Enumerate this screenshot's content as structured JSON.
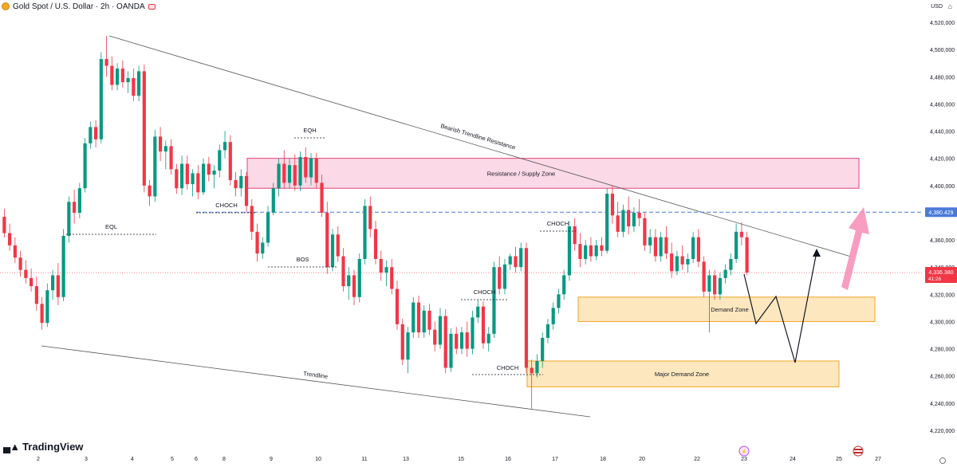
{
  "header": {
    "symbol_title": "Gold Spot / U.S. Dollar · 2h · OANDA"
  },
  "currency": "USD",
  "branding": "TradingView",
  "colors": {
    "up": "#089981",
    "down": "#f23645",
    "supply_zone_fill": "#fbd9e6",
    "supply_zone_border": "#e0427b",
    "demand_zone_fill": "#fde7bf",
    "demand_zone_border": "#f0a524",
    "price_line": "#4a7ad8",
    "projection_arrow": "#f792b8"
  },
  "chart_data": {
    "type": "candlestick",
    "symbol": "XAUUSD",
    "timeframe": "2h",
    "y_axis": {
      "min": 4220,
      "max": 4520,
      "ticks": [
        "4,520,000",
        "4,500,000",
        "4,480,000",
        "4,460,000",
        "4,440,000",
        "4,420,000",
        "4,400,000",
        "4,380,000",
        "4,360,000",
        "4,340,000",
        "4,320,000",
        "4,300,000",
        "4,280,000",
        "4,260,000",
        "4,240,000",
        "4,220,000"
      ]
    },
    "x_axis": {
      "ticks": [
        "2",
        "3",
        "4",
        "5",
        "6",
        "8",
        "9",
        "10",
        "11",
        "13",
        "15",
        "16",
        "17",
        "18",
        "20",
        "22",
        "23",
        "24",
        "25",
        "27"
      ]
    },
    "candles": [
      {
        "o": 4377,
        "h": 4383,
        "l": 4362,
        "c": 4365
      },
      {
        "o": 4365,
        "h": 4372,
        "l": 4352,
        "c": 4356
      },
      {
        "o": 4356,
        "h": 4362,
        "l": 4343,
        "c": 4347
      },
      {
        "o": 4347,
        "h": 4352,
        "l": 4333,
        "c": 4338
      },
      {
        "o": 4338,
        "h": 4345,
        "l": 4328,
        "c": 4332
      },
      {
        "o": 4332,
        "h": 4339,
        "l": 4322,
        "c": 4326
      },
      {
        "o": 4326,
        "h": 4333,
        "l": 4308,
        "c": 4313
      },
      {
        "o": 4313,
        "h": 4318,
        "l": 4294,
        "c": 4299
      },
      {
        "o": 4299,
        "h": 4328,
        "l": 4296,
        "c": 4323
      },
      {
        "o": 4323,
        "h": 4338,
        "l": 4316,
        "c": 4334
      },
      {
        "o": 4334,
        "h": 4343,
        "l": 4312,
        "c": 4318
      },
      {
        "o": 4318,
        "h": 4368,
        "l": 4315,
        "c": 4363
      },
      {
        "o": 4363,
        "h": 4392,
        "l": 4358,
        "c": 4388
      },
      {
        "o": 4388,
        "h": 4397,
        "l": 4372,
        "c": 4380
      },
      {
        "o": 4380,
        "h": 4402,
        "l": 4376,
        "c": 4398
      },
      {
        "o": 4398,
        "h": 4435,
        "l": 4395,
        "c": 4431
      },
      {
        "o": 4431,
        "h": 4447,
        "l": 4427,
        "c": 4443
      },
      {
        "o": 4443,
        "h": 4448,
        "l": 4428,
        "c": 4434
      },
      {
        "o": 4434,
        "h": 4498,
        "l": 4431,
        "c": 4493
      },
      {
        "o": 4493,
        "h": 4510,
        "l": 4480,
        "c": 4488
      },
      {
        "o": 4488,
        "h": 4495,
        "l": 4470,
        "c": 4474
      },
      {
        "o": 4474,
        "h": 4490,
        "l": 4470,
        "c": 4486
      },
      {
        "o": 4486,
        "h": 4492,
        "l": 4472,
        "c": 4476
      },
      {
        "o": 4476,
        "h": 4484,
        "l": 4468,
        "c": 4479
      },
      {
        "o": 4479,
        "h": 4486,
        "l": 4462,
        "c": 4466
      },
      {
        "o": 4466,
        "h": 4488,
        "l": 4462,
        "c": 4484
      },
      {
        "o": 4484,
        "h": 4489,
        "l": 4395,
        "c": 4400
      },
      {
        "o": 4400,
        "h": 4404,
        "l": 4385,
        "c": 4392
      },
      {
        "o": 4392,
        "h": 4441,
        "l": 4388,
        "c": 4436
      },
      {
        "o": 4436,
        "h": 4443,
        "l": 4418,
        "c": 4425
      },
      {
        "o": 4425,
        "h": 4433,
        "l": 4412,
        "c": 4429
      },
      {
        "o": 4429,
        "h": 4434,
        "l": 4408,
        "c": 4412
      },
      {
        "o": 4412,
        "h": 4416,
        "l": 4394,
        "c": 4398
      },
      {
        "o": 4398,
        "h": 4422,
        "l": 4393,
        "c": 4416
      },
      {
        "o": 4416,
        "h": 4422,
        "l": 4397,
        "c": 4401
      },
      {
        "o": 4401,
        "h": 4412,
        "l": 4392,
        "c": 4409
      },
      {
        "o": 4409,
        "h": 4415,
        "l": 4390,
        "c": 4395
      },
      {
        "o": 4395,
        "h": 4420,
        "l": 4393,
        "c": 4416
      },
      {
        "o": 4416,
        "h": 4421,
        "l": 4403,
        "c": 4408
      },
      {
        "o": 4408,
        "h": 4415,
        "l": 4398,
        "c": 4411
      },
      {
        "o": 4411,
        "h": 4430,
        "l": 4406,
        "c": 4426
      },
      {
        "o": 4426,
        "h": 4440,
        "l": 4420,
        "c": 4432
      },
      {
        "o": 4432,
        "h": 4437,
        "l": 4400,
        "c": 4404
      },
      {
        "o": 4404,
        "h": 4410,
        "l": 4392,
        "c": 4398
      },
      {
        "o": 4398,
        "h": 4412,
        "l": 4392,
        "c": 4407
      },
      {
        "o": 4407,
        "h": 4410,
        "l": 4380,
        "c": 4385
      },
      {
        "o": 4385,
        "h": 4390,
        "l": 4360,
        "c": 4366
      },
      {
        "o": 4366,
        "h": 4372,
        "l": 4344,
        "c": 4350
      },
      {
        "o": 4350,
        "h": 4362,
        "l": 4346,
        "c": 4358
      },
      {
        "o": 4358,
        "h": 4385,
        "l": 4355,
        "c": 4380
      },
      {
        "o": 4380,
        "h": 4402,
        "l": 4378,
        "c": 4398
      },
      {
        "o": 4398,
        "h": 4420,
        "l": 4392,
        "c": 4416
      },
      {
        "o": 4416,
        "h": 4426,
        "l": 4398,
        "c": 4402
      },
      {
        "o": 4402,
        "h": 4420,
        "l": 4398,
        "c": 4415
      },
      {
        "o": 4415,
        "h": 4423,
        "l": 4396,
        "c": 4400
      },
      {
        "o": 4400,
        "h": 4425,
        "l": 4396,
        "c": 4421
      },
      {
        "o": 4421,
        "h": 4428,
        "l": 4402,
        "c": 4406
      },
      {
        "o": 4406,
        "h": 4424,
        "l": 4400,
        "c": 4420
      },
      {
        "o": 4420,
        "h": 4424,
        "l": 4398,
        "c": 4402
      },
      {
        "o": 4402,
        "h": 4408,
        "l": 4377,
        "c": 4380
      },
      {
        "o": 4380,
        "h": 4388,
        "l": 4335,
        "c": 4340
      },
      {
        "o": 4340,
        "h": 4368,
        "l": 4337,
        "c": 4364
      },
      {
        "o": 4364,
        "h": 4370,
        "l": 4344,
        "c": 4348
      },
      {
        "o": 4348,
        "h": 4354,
        "l": 4322,
        "c": 4326
      },
      {
        "o": 4326,
        "h": 4340,
        "l": 4316,
        "c": 4334
      },
      {
        "o": 4334,
        "h": 4338,
        "l": 4312,
        "c": 4318
      },
      {
        "o": 4318,
        "h": 4350,
        "l": 4314,
        "c": 4346
      },
      {
        "o": 4346,
        "h": 4390,
        "l": 4342,
        "c": 4385
      },
      {
        "o": 4385,
        "h": 4392,
        "l": 4362,
        "c": 4368
      },
      {
        "o": 4368,
        "h": 4374,
        "l": 4342,
        "c": 4346
      },
      {
        "o": 4346,
        "h": 4352,
        "l": 4330,
        "c": 4336
      },
      {
        "o": 4336,
        "h": 4345,
        "l": 4326,
        "c": 4340
      },
      {
        "o": 4340,
        "h": 4346,
        "l": 4320,
        "c": 4324
      },
      {
        "o": 4324,
        "h": 4330,
        "l": 4294,
        "c": 4298
      },
      {
        "o": 4298,
        "h": 4302,
        "l": 4268,
        "c": 4272
      },
      {
        "o": 4272,
        "h": 4296,
        "l": 4262,
        "c": 4292
      },
      {
        "o": 4292,
        "h": 4318,
        "l": 4288,
        "c": 4314
      },
      {
        "o": 4314,
        "h": 4319,
        "l": 4288,
        "c": 4292
      },
      {
        "o": 4292,
        "h": 4312,
        "l": 4288,
        "c": 4308
      },
      {
        "o": 4308,
        "h": 4313,
        "l": 4290,
        "c": 4294
      },
      {
        "o": 4294,
        "h": 4300,
        "l": 4278,
        "c": 4283
      },
      {
        "o": 4283,
        "h": 4310,
        "l": 4280,
        "c": 4304
      },
      {
        "o": 4304,
        "h": 4309,
        "l": 4262,
        "c": 4266
      },
      {
        "o": 4266,
        "h": 4295,
        "l": 4263,
        "c": 4291
      },
      {
        "o": 4291,
        "h": 4296,
        "l": 4276,
        "c": 4280
      },
      {
        "o": 4280,
        "h": 4296,
        "l": 4276,
        "c": 4292
      },
      {
        "o": 4292,
        "h": 4300,
        "l": 4274,
        "c": 4280
      },
      {
        "o": 4280,
        "h": 4308,
        "l": 4276,
        "c": 4303
      },
      {
        "o": 4303,
        "h": 4316,
        "l": 4299,
        "c": 4311
      },
      {
        "o": 4311,
        "h": 4315,
        "l": 4280,
        "c": 4284
      },
      {
        "o": 4284,
        "h": 4296,
        "l": 4278,
        "c": 4291
      },
      {
        "o": 4291,
        "h": 4344,
        "l": 4288,
        "c": 4340
      },
      {
        "o": 4340,
        "h": 4348,
        "l": 4320,
        "c": 4324
      },
      {
        "o": 4324,
        "h": 4346,
        "l": 4320,
        "c": 4342
      },
      {
        "o": 4342,
        "h": 4350,
        "l": 4338,
        "c": 4348
      },
      {
        "o": 4348,
        "h": 4355,
        "l": 4336,
        "c": 4340
      },
      {
        "o": 4340,
        "h": 4358,
        "l": 4337,
        "c": 4354
      },
      {
        "o": 4354,
        "h": 4358,
        "l": 4262,
        "c": 4266
      },
      {
        "o": 4266,
        "h": 4272,
        "l": 4236,
        "c": 4262
      },
      {
        "o": 4262,
        "h": 4276,
        "l": 4259,
        "c": 4271
      },
      {
        "o": 4271,
        "h": 4292,
        "l": 4266,
        "c": 4288
      },
      {
        "o": 4288,
        "h": 4302,
        "l": 4284,
        "c": 4298
      },
      {
        "o": 4298,
        "h": 4314,
        "l": 4294,
        "c": 4310
      },
      {
        "o": 4310,
        "h": 4324,
        "l": 4306,
        "c": 4320
      },
      {
        "o": 4320,
        "h": 4338,
        "l": 4316,
        "c": 4334
      },
      {
        "o": 4334,
        "h": 4374,
        "l": 4330,
        "c": 4370
      },
      {
        "o": 4370,
        "h": 4376,
        "l": 4352,
        "c": 4357
      },
      {
        "o": 4357,
        "h": 4365,
        "l": 4340,
        "c": 4346
      },
      {
        "o": 4346,
        "h": 4360,
        "l": 4342,
        "c": 4356
      },
      {
        "o": 4356,
        "h": 4362,
        "l": 4344,
        "c": 4348
      },
      {
        "o": 4348,
        "h": 4360,
        "l": 4345,
        "c": 4356
      },
      {
        "o": 4356,
        "h": 4362,
        "l": 4348,
        "c": 4352
      },
      {
        "o": 4352,
        "h": 4398,
        "l": 4350,
        "c": 4394
      },
      {
        "o": 4394,
        "h": 4400,
        "l": 4372,
        "c": 4378
      },
      {
        "o": 4378,
        "h": 4388,
        "l": 4362,
        "c": 4366
      },
      {
        "o": 4366,
        "h": 4386,
        "l": 4362,
        "c": 4382
      },
      {
        "o": 4382,
        "h": 4392,
        "l": 4364,
        "c": 4370
      },
      {
        "o": 4370,
        "h": 4384,
        "l": 4366,
        "c": 4380
      },
      {
        "o": 4380,
        "h": 4390,
        "l": 4370,
        "c": 4376
      },
      {
        "o": 4376,
        "h": 4380,
        "l": 4352,
        "c": 4356
      },
      {
        "o": 4356,
        "h": 4368,
        "l": 4350,
        "c": 4362
      },
      {
        "o": 4362,
        "h": 4368,
        "l": 4344,
        "c": 4348
      },
      {
        "o": 4348,
        "h": 4366,
        "l": 4344,
        "c": 4362
      },
      {
        "o": 4362,
        "h": 4370,
        "l": 4346,
        "c": 4350
      },
      {
        "o": 4350,
        "h": 4358,
        "l": 4332,
        "c": 4337
      },
      {
        "o": 4337,
        "h": 4352,
        "l": 4334,
        "c": 4348
      },
      {
        "o": 4348,
        "h": 4356,
        "l": 4338,
        "c": 4342
      },
      {
        "o": 4342,
        "h": 4350,
        "l": 4336,
        "c": 4346
      },
      {
        "o": 4346,
        "h": 4366,
        "l": 4343,
        "c": 4362
      },
      {
        "o": 4362,
        "h": 4368,
        "l": 4340,
        "c": 4344
      },
      {
        "o": 4344,
        "h": 4348,
        "l": 4318,
        "c": 4322
      },
      {
        "o": 4322,
        "h": 4338,
        "l": 4292,
        "c": 4334
      },
      {
        "o": 4334,
        "h": 4338,
        "l": 4316,
        "c": 4320
      },
      {
        "o": 4320,
        "h": 4336,
        "l": 4316,
        "c": 4332
      },
      {
        "o": 4332,
        "h": 4342,
        "l": 4328,
        "c": 4338
      },
      {
        "o": 4338,
        "h": 4350,
        "l": 4334,
        "c": 4346
      },
      {
        "o": 4346,
        "h": 4372,
        "l": 4343,
        "c": 4366
      },
      {
        "o": 4366,
        "h": 4373,
        "l": 4356,
        "c": 4362
      },
      {
        "o": 4362,
        "h": 4366,
        "l": 4334,
        "c": 4336
      }
    ],
    "current_price_label": "4,336.380",
    "countdown_label": "41:26",
    "level_label": "4,380.429",
    "level_value": 4380.429,
    "zones": [
      {
        "name": "Resistance / Supply Zone",
        "kind": "supply",
        "top": 4420,
        "bottom": 4398
      },
      {
        "name": "Demand Zone",
        "kind": "demand",
        "top": 4318,
        "bottom": 4300
      },
      {
        "name": "Major Demand Zone",
        "kind": "demand",
        "top": 4271,
        "bottom": 4252
      }
    ],
    "annotations": [
      {
        "text": "EQH",
        "value": 4433
      },
      {
        "text": "EQL",
        "value": 4366
      },
      {
        "text": "CHOCH",
        "value": 4381
      },
      {
        "text": "BOS",
        "value": 4340
      },
      {
        "text": "CHOCH",
        "value": 4316
      },
      {
        "text": "CHOCH",
        "value": 4262
      },
      {
        "text": "CHOCH",
        "value": 4370
      }
    ],
    "trendlines": [
      {
        "name": "Bearish Trendline Resistance"
      },
      {
        "name": "Trendline"
      }
    ],
    "projection": "down to Major Demand Zone, then up"
  }
}
